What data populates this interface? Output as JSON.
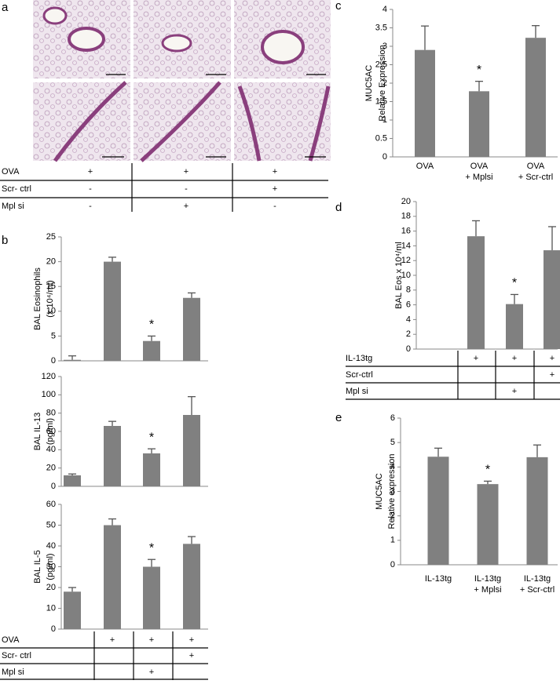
{
  "panel_a": {
    "label": "a",
    "conditions": [
      {
        "name": "OVA",
        "cells": [
          "+",
          "+",
          "+"
        ]
      },
      {
        "name": "Scr- ctrl",
        "cells": [
          "-",
          "-",
          "+"
        ]
      },
      {
        "name": "Mpl si",
        "cells": [
          "-",
          "+",
          "-"
        ]
      }
    ]
  },
  "chart_data": [
    {
      "type": "bar",
      "panel": "b",
      "ylabel": [
        "BAL Eosinophils",
        "(x 10⁴/ml)"
      ],
      "categories": [
        null,
        null,
        null,
        null
      ],
      "values": [
        0.2,
        20,
        4,
        12.7
      ],
      "errors": [
        0.8,
        0.9,
        1,
        1
      ],
      "ylim": [
        0,
        25
      ],
      "yticks": [
        0,
        5,
        10,
        15,
        20,
        25
      ],
      "color": "#808080",
      "annotations": [
        {
          "text": "*",
          "category": 2
        }
      ]
    },
    {
      "type": "bar",
      "ylabel": [
        "BAL IL-13",
        "(pg/ml)"
      ],
      "categories": [
        null,
        null,
        null,
        null
      ],
      "values": [
        12,
        66,
        36,
        78
      ],
      "errors": [
        1.5,
        5,
        5,
        20
      ],
      "ylim": [
        0,
        120
      ],
      "yticks": [
        0,
        20,
        40,
        60,
        80,
        100,
        120
      ],
      "color": "#808080",
      "annotations": [
        {
          "text": "*",
          "category": 2
        }
      ]
    },
    {
      "type": "bar",
      "ylabel": [
        "BAL IL-5",
        "(pg/ml)"
      ],
      "categories": [
        null,
        null,
        null,
        null
      ],
      "values": [
        18,
        50,
        30,
        41
      ],
      "errors": [
        2,
        3,
        3.5,
        3.5
      ],
      "ylim": [
        0,
        60
      ],
      "yticks": [
        0,
        10,
        20,
        30,
        40,
        50,
        60
      ],
      "color": "#808080",
      "annotations": [
        {
          "text": "*",
          "category": 2
        }
      ],
      "conditions": [
        {
          "name": "OVA",
          "cells": [
            null,
            "+",
            "+",
            "+"
          ]
        },
        {
          "name": "Scr- ctrl",
          "cells": [
            null,
            null,
            null,
            "+"
          ]
        },
        {
          "name": "Mpl si",
          "cells": [
            null,
            null,
            "+",
            null
          ]
        }
      ]
    },
    {
      "type": "bar",
      "panel": "c",
      "ylabel": [
        "MUC5AC",
        "Relative Expression"
      ],
      "categories": [
        [
          "OVA"
        ],
        [
          "OVA",
          "+ Mplsi"
        ],
        [
          "OVA",
          "+ Scr-ctrl"
        ]
      ],
      "values": [
        2.9,
        1.78,
        3.23
      ],
      "errors": [
        0.65,
        0.27,
        0.33
      ],
      "ylim": [
        0,
        4
      ],
      "yticks": [
        0,
        0.5,
        1,
        1.5,
        2,
        2.5,
        3,
        3.5,
        4
      ],
      "color": "#808080",
      "annotations": [
        {
          "text": "*",
          "category": 1
        }
      ]
    },
    {
      "type": "bar",
      "panel": "d",
      "ylabel": [
        "BAL Eos x 10⁴/ml"
      ],
      "categories": [
        null,
        null,
        null,
        null
      ],
      "values": [
        null,
        15.3,
        6.1,
        13.4
      ],
      "errors": [
        null,
        2.1,
        1.3,
        3.2
      ],
      "ylim": [
        0,
        20
      ],
      "yticks": [
        0,
        2,
        4,
        6,
        8,
        10,
        12,
        14,
        16,
        18,
        20
      ],
      "color": "#808080",
      "annotations": [
        {
          "text": "*",
          "category": 2
        }
      ],
      "conditions": [
        {
          "name": "IL-13tg",
          "cells": [
            null,
            "+",
            "+",
            "+"
          ]
        },
        {
          "name": "Scr-ctrl",
          "cells": [
            null,
            null,
            null,
            "+"
          ]
        },
        {
          "name": "Mpl si",
          "cells": [
            null,
            null,
            "+",
            null
          ]
        }
      ]
    },
    {
      "type": "bar",
      "panel": "e",
      "ylabel": [
        "MUC5AC",
        "Relative expression"
      ],
      "categories": [
        [
          "IL-13tg"
        ],
        [
          "IL-13tg",
          "+ Mplsi"
        ],
        [
          "IL-13tg",
          "+ Scr-ctrl"
        ]
      ],
      "values": [
        4.42,
        3.3,
        4.4
      ],
      "errors": [
        0.35,
        0.12,
        0.5
      ],
      "ylim": [
        0,
        6
      ],
      "yticks": [
        0,
        1,
        2,
        3,
        4,
        5,
        6
      ],
      "color": "#808080",
      "annotations": [
        {
          "text": "*",
          "category": 1
        }
      ]
    }
  ]
}
